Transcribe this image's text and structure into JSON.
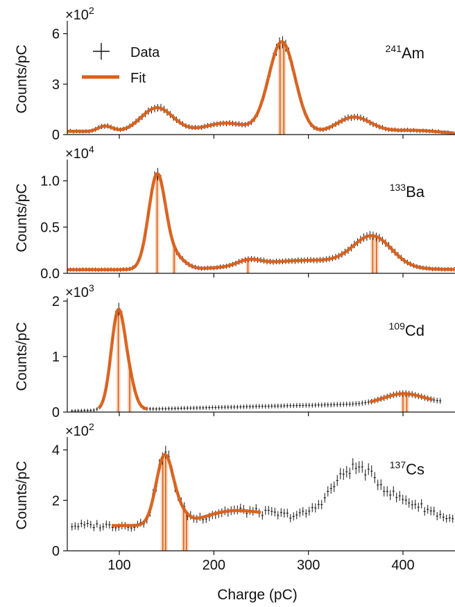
{
  "figure": {
    "xlabel": "Charge (pC)",
    "legend": {
      "data_label": "Data",
      "fit_label": "Fit"
    }
  },
  "colors": {
    "fit": "#d9601a",
    "band": "#f7c7a4",
    "data": "#111111",
    "axis": "#111111"
  },
  "chart_data": [
    {
      "type": "scatter",
      "title": "241Am",
      "isotope": {
        "mass": "241",
        "symbol": "Am"
      },
      "ylabel": "Counts/pC",
      "scale_mult": "×10",
      "scale_exp": "2",
      "xlim": [
        45,
        455
      ],
      "ylim": [
        0,
        6.6
      ],
      "yticks": [
        "0",
        "3",
        "6"
      ],
      "ytick_values": [
        0,
        3,
        6
      ],
      "show_legend": true,
      "fit_range": [
        45,
        455
      ],
      "data_range": [
        45,
        455
      ],
      "data_noise": 0.05,
      "background": {
        "level": 0.15,
        "slope": 0.0,
        "edge": 330,
        "ewidth": 60
      },
      "peaks": [
        {
          "center": 52,
          "sigma": 12,
          "height": 0.05
        },
        {
          "center": 85,
          "sigma": 8,
          "height": 0.35
        },
        {
          "center": 140,
          "sigma": 17,
          "height": 1.45
        },
        {
          "center": 213,
          "sigma": 22,
          "height": 0.55
        },
        {
          "center": 272,
          "sigma": 14,
          "height": 5.4
        },
        {
          "center": 348,
          "sigma": 18,
          "height": 0.95
        },
        {
          "center": 410,
          "sigma": 30,
          "height": 0.22
        }
      ],
      "markers": [
        270,
        274
      ]
    },
    {
      "type": "scatter",
      "title": "133Ba",
      "isotope": {
        "mass": "133",
        "symbol": "Ba"
      },
      "ylabel": "Counts/pC",
      "scale_mult": "×10",
      "scale_exp": "4",
      "xlim": [
        45,
        455
      ],
      "ylim": [
        0,
        1.2
      ],
      "yticks": [
        "0.0",
        "0.5",
        "1.0"
      ],
      "ytick_values": [
        0.0,
        0.5,
        1.0
      ],
      "show_legend": false,
      "fit_range": [
        45,
        455
      ],
      "data_range": [
        45,
        455
      ],
      "data_noise": 0.005,
      "background": {
        "level": 0.04,
        "slope": 0.0,
        "edge": 0,
        "ewidth": 1
      },
      "peaks": [
        {
          "center": 140,
          "sigma": 9,
          "height": 1.02
        },
        {
          "center": 160,
          "sigma": 10,
          "height": 0.12
        },
        {
          "center": 237,
          "sigma": 12,
          "height": 0.06
        },
        {
          "center": 300,
          "sigma": 55,
          "height": 0.1
        },
        {
          "center": 368,
          "sigma": 20,
          "height": 0.32
        }
      ],
      "markers": [
        140,
        158,
        236,
        368,
        372
      ]
    },
    {
      "type": "scatter",
      "title": "109Cd",
      "isotope": {
        "mass": "109",
        "symbol": "Cd"
      },
      "ylabel": "Counts/pC",
      "scale_mult": "×10",
      "scale_exp": "3",
      "xlim": [
        45,
        455
      ],
      "ylim": [
        0,
        2.0
      ],
      "yticks": [
        "0",
        "1",
        "2"
      ],
      "ytick_values": [
        0,
        1,
        2
      ],
      "show_legend": false,
      "fit_range": [
        78,
        130
      ],
      "fit_range2": [
        365,
        432
      ],
      "data_range": [
        50,
        440
      ],
      "data_noise": 0.004,
      "background": {
        "level": 0.02,
        "slope": 0.0004,
        "edge": 0,
        "ewidth": 1
      },
      "peaks": [
        {
          "center": 99,
          "sigma": 7.5,
          "height": 1.78
        },
        {
          "center": 112,
          "sigma": 6,
          "height": 0.3
        },
        {
          "center": 400,
          "sigma": 20,
          "height": 0.17
        }
      ],
      "markers": [
        99,
        111,
        400,
        404
      ]
    },
    {
      "type": "scatter",
      "title": "137Cs",
      "isotope": {
        "mass": "137",
        "symbol": "Cs"
      },
      "ylabel": "Counts/pC",
      "scale_mult": "×10",
      "scale_exp": "2",
      "xlim": [
        45,
        455
      ],
      "ylim": [
        0,
        4.4
      ],
      "yticks": [
        "0",
        "2",
        "4"
      ],
      "ytick_values": [
        0,
        2,
        4
      ],
      "show_legend": false,
      "fit_range": [
        92,
        250
      ],
      "data_range": [
        50,
        455
      ],
      "data_noise": 0.12,
      "background": {
        "level": 1.0,
        "slope": 0.0,
        "edge": 0,
        "ewidth": 1
      },
      "peaks": [
        {
          "center": 148,
          "sigma": 9,
          "height": 2.75
        },
        {
          "center": 165,
          "sigma": 8,
          "height": 0.35
        },
        {
          "center": 215,
          "sigma": 28,
          "height": 0.5
        },
        {
          "center": 268,
          "sigma": 30,
          "height": 0.35
        },
        {
          "center": 348,
          "sigma": 25,
          "height": 2.15
        },
        {
          "center": 405,
          "sigma": 30,
          "height": 0.8
        }
      ],
      "markers": [
        146,
        149,
        168,
        171
      ]
    }
  ]
}
